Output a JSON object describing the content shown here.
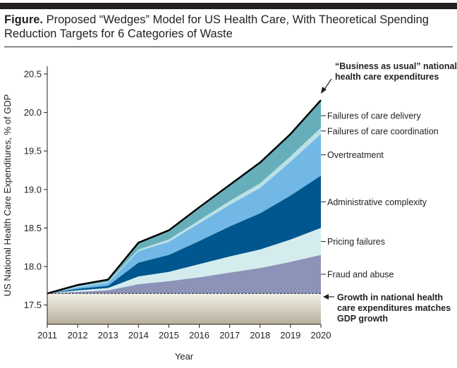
{
  "figure": {
    "label": "Figure.",
    "title": "Proposed “Wedges” Model for US Health Care, With Theoretical Spending Reduction Targets for 6 Categories of Waste"
  },
  "chart_data": {
    "type": "area",
    "title": "Proposed “Wedges” Model for US Health Care, With Theoretical Spending Reduction Targets for 6 Categories of Waste",
    "xlabel": "Year",
    "ylabel": "US National Health Care Expenditures, % of GDP",
    "x": [
      2011,
      2012,
      2013,
      2014,
      2015,
      2016,
      2017,
      2018,
      2019,
      2020
    ],
    "xlim": [
      2011,
      2020
    ],
    "ylim": [
      17.25,
      20.6
    ],
    "yticks": [
      17.5,
      18.0,
      18.5,
      19.0,
      19.5,
      20.0,
      20.5
    ],
    "ytick_labels": [
      "17.5",
      "18.0",
      "18.5",
      "19.0",
      "19.5",
      "20.0",
      "20.5"
    ],
    "baseline": {
      "name": "Growth in national health care expenditures matches GDP growth",
      "value": 17.65
    },
    "series_cumulative": [
      {
        "name": "Fraud and abuse",
        "color": "#8d93b8",
        "values": [
          17.65,
          17.67,
          17.69,
          17.77,
          17.81,
          17.86,
          17.92,
          17.98,
          18.06,
          18.15
        ]
      },
      {
        "name": "Pricing failures",
        "color": "#d5ecef",
        "values": [
          17.65,
          17.69,
          17.72,
          17.87,
          17.93,
          18.03,
          18.13,
          18.22,
          18.35,
          18.5
        ]
      },
      {
        "name": "Administrative complexity",
        "color": "#00568e",
        "values": [
          17.65,
          17.71,
          17.75,
          18.05,
          18.15,
          18.33,
          18.52,
          18.69,
          18.92,
          19.18
        ]
      },
      {
        "name": "Overtreatment",
        "color": "#71b8e6",
        "values": [
          17.65,
          17.73,
          17.79,
          18.2,
          18.32,
          18.56,
          18.8,
          19.02,
          19.36,
          19.72
        ]
      },
      {
        "name": "Failures of care coordination",
        "color": "#bbe0e6",
        "values": [
          17.65,
          17.74,
          17.8,
          18.22,
          18.35,
          18.6,
          18.85,
          19.08,
          19.43,
          19.8
        ]
      },
      {
        "name": "Failures of care delivery",
        "color": "#66afba",
        "values": [
          17.65,
          17.76,
          17.83,
          18.31,
          18.47,
          18.77,
          19.06,
          19.35,
          19.72,
          20.16
        ]
      }
    ],
    "total": {
      "name": "“Business as usual” national health care expenditures",
      "values": [
        17.65,
        17.76,
        17.83,
        18.31,
        18.47,
        18.77,
        19.06,
        19.35,
        19.72,
        20.16
      ]
    },
    "labels": {
      "total_line1": "“Business as usual” national",
      "total_line2": "health care expenditures",
      "baseline_line1": "Growth in national health",
      "baseline_line2": "care expenditures matches",
      "baseline_line3": "GDP growth",
      "x_ticks": [
        "2011",
        "2012",
        "2013",
        "2014",
        "2015",
        "2016",
        "2017",
        "2018",
        "2019",
        "2020"
      ]
    },
    "grid": false,
    "legend": "right (inline labels)",
    "colors": {
      "baseline_fill_top": "#f4f1ea",
      "baseline_fill_bottom": "#b7ae9a",
      "axis": "#231f20"
    }
  }
}
